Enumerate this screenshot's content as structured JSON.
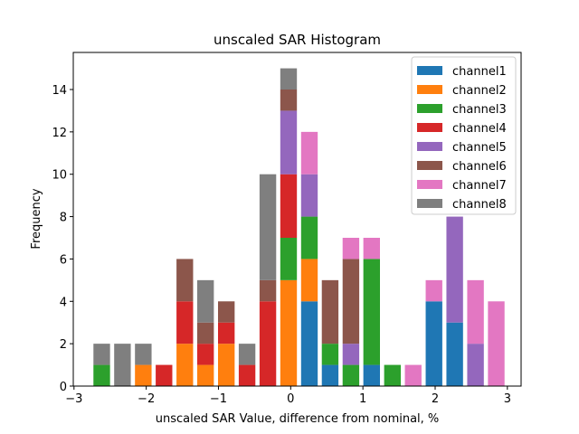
{
  "chart_data": {
    "type": "bar",
    "stacked": true,
    "title": "unscaled SAR Histogram",
    "xlabel": "unscaled SAR Value, difference from nominal, %",
    "ylabel": "Frequency",
    "xlim": [
      -3.01,
      3.19
    ],
    "ylim": [
      0,
      15.75
    ],
    "xticks": [
      -3,
      -2,
      -1,
      0,
      1,
      2,
      3
    ],
    "xtick_labels": [
      "−3",
      "−2",
      "−1",
      "0",
      "1",
      "2",
      "3"
    ],
    "yticks": [
      0,
      2,
      4,
      6,
      8,
      10,
      12,
      14
    ],
    "ytick_labels": [
      "0",
      "2",
      "4",
      "6",
      "8",
      "10",
      "12",
      "14"
    ],
    "grid": false,
    "legend_position": "top-right",
    "bin_width": 0.2875,
    "bar_fraction": 0.8,
    "x": [
      -2.616,
      -2.329,
      -2.041,
      -1.754,
      -1.466,
      -1.179,
      -0.891,
      -0.604,
      -0.316,
      -0.029,
      0.259,
      0.546,
      0.834,
      1.121,
      1.409,
      1.696,
      1.984,
      2.271,
      2.559,
      2.846
    ],
    "series": [
      {
        "name": "channel1",
        "color": "#1f77b4",
        "values": [
          0,
          0,
          0,
          0,
          0,
          0,
          0,
          0,
          0,
          0,
          4,
          1,
          0,
          1,
          0,
          0,
          4,
          3,
          0,
          0
        ]
      },
      {
        "name": "channel2",
        "color": "#ff7f0e",
        "values": [
          0,
          0,
          1,
          0,
          2,
          1,
          2,
          0,
          0,
          5,
          2,
          0,
          0,
          0,
          0,
          0,
          0,
          0,
          0,
          0
        ]
      },
      {
        "name": "channel3",
        "color": "#2ca02c",
        "values": [
          1,
          0,
          0,
          0,
          0,
          0,
          0,
          0,
          0,
          2,
          2,
          1,
          1,
          5,
          1,
          0,
          0,
          0,
          0,
          0
        ]
      },
      {
        "name": "channel4",
        "color": "#d62728",
        "values": [
          0,
          0,
          0,
          1,
          2,
          1,
          1,
          1,
          4,
          3,
          0,
          0,
          0,
          0,
          0,
          0,
          0,
          0,
          0,
          0
        ]
      },
      {
        "name": "channel5",
        "color": "#9467bd",
        "values": [
          0,
          0,
          0,
          0,
          0,
          0,
          0,
          0,
          0,
          3,
          2,
          0,
          1,
          0,
          0,
          0,
          0,
          5,
          2,
          0
        ]
      },
      {
        "name": "channel6",
        "color": "#8c564b",
        "values": [
          0,
          0,
          0,
          0,
          2,
          1,
          1,
          0,
          1,
          1,
          0,
          3,
          4,
          0,
          0,
          0,
          0,
          0,
          0,
          0
        ]
      },
      {
        "name": "channel7",
        "color": "#e377c2",
        "values": [
          0,
          0,
          0,
          0,
          0,
          0,
          0,
          0,
          0,
          0,
          2,
          0,
          1,
          1,
          0,
          1,
          1,
          0,
          3,
          4
        ]
      },
      {
        "name": "channel8",
        "color": "#7f7f7f",
        "values": [
          1,
          2,
          1,
          0,
          0,
          2,
          0,
          1,
          5,
          1,
          0,
          0,
          0,
          0,
          0,
          0,
          0,
          0,
          0,
          0
        ]
      }
    ]
  }
}
